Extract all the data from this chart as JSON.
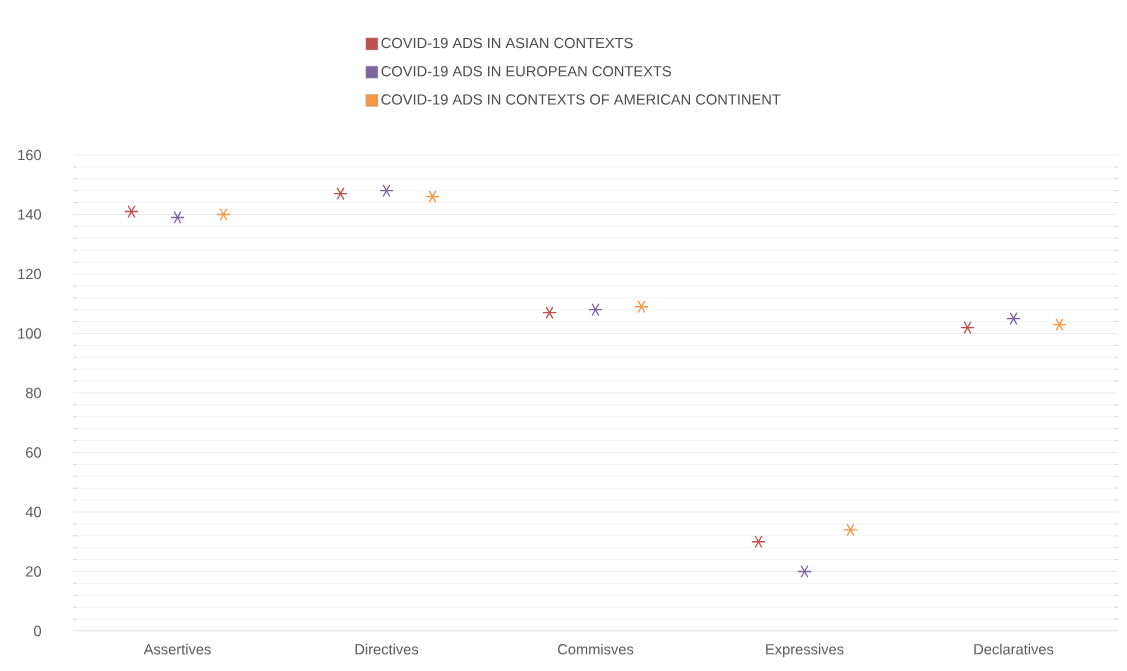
{
  "chart_data": {
    "type": "scatter",
    "categories": [
      "Assertives",
      "Directives",
      "Commisves",
      "Expressives",
      "Declaratives"
    ],
    "series": [
      {
        "name": "COVID-19 ADS IN ASIAN CONTEXTS",
        "color": "#c0504d",
        "values": [
          141,
          147,
          107,
          30,
          102
        ]
      },
      {
        "name": "COVID-19 ADS IN EUROPEAN CONTEXTS",
        "color": "#8064a2",
        "values": [
          139,
          148,
          108,
          20,
          105
        ]
      },
      {
        "name": "COVID-19 ADS IN CONTEXTS OF AMERICAN CONTINENT",
        "color": "#f79646",
        "values": [
          140,
          146,
          109,
          34,
          103
        ]
      }
    ],
    "ylim": [
      0,
      160
    ],
    "yticks": [
      0,
      20,
      40,
      60,
      80,
      100,
      120,
      140,
      160
    ],
    "grid": "y",
    "legend": "top",
    "marker": "cross"
  }
}
